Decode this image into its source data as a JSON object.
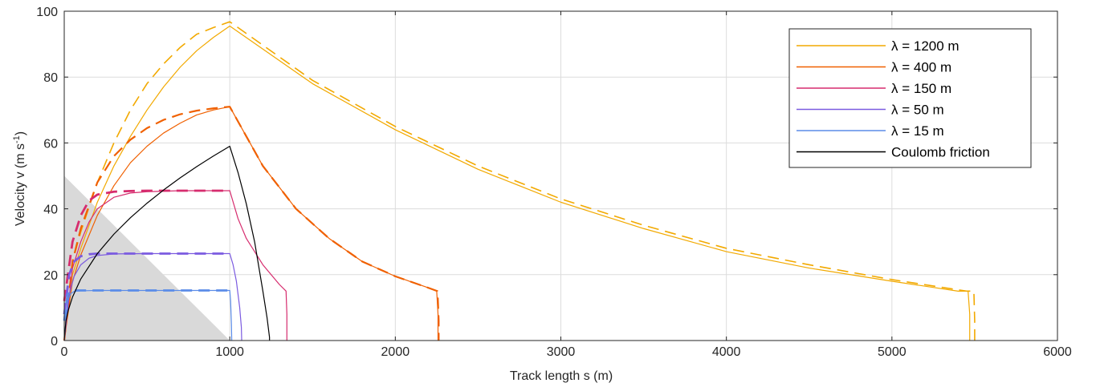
{
  "chart_data": {
    "type": "line",
    "xlabel": "Track length s (m)",
    "ylabel_main": "Velocity v (m s",
    "ylabel_sup": "-1",
    "ylabel_end": ")",
    "xlim": [
      0,
      6000
    ],
    "ylim": [
      0,
      100
    ],
    "xticks": [
      "0",
      "1000",
      "2000",
      "3000",
      "4000",
      "5000",
      "6000"
    ],
    "yticks": [
      "0",
      "20",
      "40",
      "60",
      "80",
      "100"
    ],
    "grid": true,
    "legend_placement": "top-right",
    "shaded_region": {
      "vertices": [
        [
          0,
          50
        ],
        [
          1000,
          0
        ],
        [
          0,
          0
        ]
      ],
      "color": "#d9d9d9"
    },
    "series": [
      {
        "name": "λ = 1200 m",
        "color": "#f2a900",
        "style": "solid",
        "width": 1.2,
        "x": [
          0,
          50,
          100,
          200,
          300,
          400,
          500,
          600,
          700,
          800,
          900,
          1000,
          1500,
          2000,
          2500,
          3000,
          3500,
          4000,
          4500,
          5000,
          5400,
          5460,
          5470,
          5470
        ],
        "y": [
          0,
          20,
          28,
          42,
          53,
          62,
          70,
          77,
          83,
          88,
          92,
          95.5,
          78,
          64,
          52,
          42,
          34,
          27,
          22,
          18,
          15,
          15,
          8,
          0
        ]
      },
      {
        "name": "",
        "color": "#f2a900",
        "style": "dashed",
        "width": 1.6,
        "x": [
          0,
          50,
          100,
          200,
          300,
          400,
          500,
          600,
          700,
          800,
          900,
          1000,
          1500,
          2000,
          2500,
          3000,
          3500,
          4000,
          4500,
          5000,
          5450,
          5495,
          5500,
          5500
        ],
        "y": [
          0,
          24,
          33,
          48,
          60,
          70,
          78,
          84,
          89,
          93,
          95,
          96.8,
          79,
          65,
          53,
          43,
          35,
          28,
          23,
          18.5,
          15,
          15,
          6,
          0
        ]
      },
      {
        "name": "λ = 400 m",
        "color": "#f06000",
        "style": "solid",
        "width": 1.2,
        "x": [
          0,
          50,
          100,
          200,
          300,
          400,
          500,
          600,
          700,
          800,
          900,
          1000,
          1100,
          1200,
          1400,
          1600,
          1800,
          2000,
          2200,
          2250,
          2258,
          2258
        ],
        "y": [
          0,
          18,
          26,
          38,
          47,
          54,
          59,
          63,
          66,
          68.5,
          70,
          71,
          62,
          53,
          40,
          31,
          24,
          19.5,
          16,
          15,
          8,
          0
        ]
      },
      {
        "name": "",
        "color": "#f06000",
        "style": "dashed",
        "width": 2.2,
        "x": [
          0,
          50,
          100,
          200,
          300,
          400,
          500,
          600,
          700,
          800,
          900,
          1000,
          1100,
          1200,
          1400,
          1600,
          1800,
          2000,
          2200,
          2255,
          2262,
          2262
        ],
        "y": [
          0,
          24,
          34,
          48,
          56,
          61,
          64.5,
          67,
          68.7,
          69.8,
          70.5,
          71,
          62,
          53,
          40,
          31,
          24,
          19.5,
          16,
          15,
          6,
          0
        ]
      },
      {
        "name": "λ = 150 m",
        "color": "#d62c6e",
        "style": "solid",
        "width": 1.2,
        "x": [
          0,
          50,
          100,
          150,
          200,
          300,
          400,
          500,
          700,
          1000,
          1050,
          1100,
          1200,
          1300,
          1340,
          1345,
          1345
        ],
        "y": [
          0,
          22,
          30,
          36,
          40,
          43.5,
          44.8,
          45.2,
          45.5,
          45.5,
          37,
          31,
          23,
          17,
          15,
          8,
          0
        ]
      },
      {
        "name": "",
        "color": "#d62c6e",
        "style": "dashed",
        "width": 2.8,
        "x": [
          0,
          50,
          100,
          150,
          200,
          300,
          400,
          500,
          700,
          1000
        ],
        "y": [
          12,
          30,
          38,
          42.5,
          44.3,
          45.2,
          45.4,
          45.5,
          45.5,
          45.5
        ]
      },
      {
        "name": "λ = 50 m",
        "color": "#7b5be0",
        "style": "solid",
        "width": 1.2,
        "x": [
          0,
          30,
          60,
          100,
          150,
          200,
          300,
          500,
          1000,
          1020,
          1040,
          1060,
          1070,
          1072
        ],
        "y": [
          0,
          14,
          19.5,
          23,
          25,
          25.8,
          26.3,
          26.4,
          26.4,
          23,
          18,
          10,
          4,
          0
        ]
      },
      {
        "name": "",
        "color": "#7b5be0",
        "style": "dashed",
        "width": 2.8,
        "x": [
          0,
          30,
          60,
          100,
          150,
          200,
          300,
          500,
          1000
        ],
        "y": [
          8,
          20,
          24,
          25.6,
          26.2,
          26.4,
          26.4,
          26.4,
          26.4
        ]
      },
      {
        "name": "λ = 15 m",
        "color": "#5b8ce8",
        "style": "solid",
        "width": 1.2,
        "x": [
          0,
          20,
          40,
          60,
          100,
          200,
          500,
          1000,
          1005,
          1010,
          1012
        ],
        "y": [
          0,
          12,
          14.3,
          14.9,
          15.1,
          15.2,
          15.2,
          15.2,
          12,
          5,
          0
        ]
      },
      {
        "name": "",
        "color": "#5b8ce8",
        "style": "dashed",
        "width": 2.8,
        "x": [
          0,
          20,
          40,
          60,
          100,
          200,
          500,
          1000
        ],
        "y": [
          6,
          14,
          15,
          15.2,
          15.2,
          15.2,
          15.2,
          15.2
        ]
      },
      {
        "name": "Coulomb friction",
        "color": "#000000",
        "style": "solid",
        "width": 1.2,
        "x": [
          0,
          10,
          25,
          50,
          100,
          200,
          300,
          400,
          500,
          600,
          700,
          800,
          900,
          1000,
          1050,
          1100,
          1150,
          1200,
          1225,
          1240,
          1240
        ],
        "y": [
          0,
          5.9,
          9.3,
          13.2,
          18.7,
          26.4,
          32.3,
          37.3,
          41.7,
          45.7,
          49.4,
          52.8,
          56,
          59,
          51,
          41.5,
          30,
          15,
          7,
          1,
          0
        ]
      }
    ]
  }
}
